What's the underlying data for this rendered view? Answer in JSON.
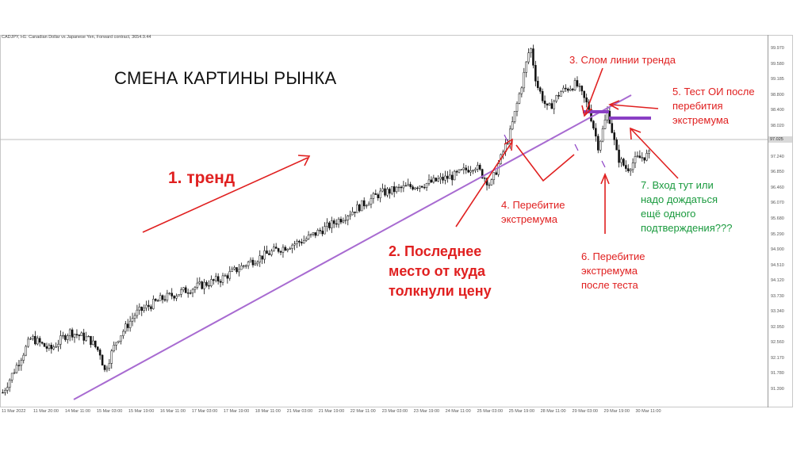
{
  "slide": {
    "title": "СМЕНА КАРТИНЫ РЫНКА"
  },
  "annotations": {
    "trend": "1. тренд",
    "last_push": [
      "2. Последнее",
      "место от куда",
      "толкнули цену"
    ],
    "trendline_break": "3. Слом линии тренда",
    "extreme_break": [
      "4. Перебитие",
      "экстремума"
    ],
    "retest": [
      "5. Тест ОИ после",
      "перебития",
      "экстремума"
    ],
    "extreme_break_after_test": [
      "6. Перебитие",
      "экстремума",
      "после теста"
    ],
    "entry_question": [
      "7. Вход тут или",
      "надо дождаться",
      "ещё одного",
      "подтверждения???"
    ]
  },
  "colors": {
    "annotation_red": "#e02020",
    "annotation_green": "#1a9a3e",
    "trendline": "#a86bd1",
    "level_line": "#8a3fc4",
    "candle": "#111111"
  },
  "chart_data": {
    "type": "candlestick",
    "header": "CADJPY, H1: Canadian Dollar vs Japanese Yen, Forward contract, 3654.9.44",
    "current_price": "97.025",
    "y_ticks": [
      "99.970",
      "99.580",
      "99.185",
      "98.800",
      "98.400",
      "98.020",
      "97.630",
      "97.240",
      "96.850",
      "96.460",
      "96.070",
      "95.680",
      "95.290",
      "94.900",
      "94.510",
      "94.120",
      "93.730",
      "93.340",
      "92.950",
      "92.560",
      "92.170",
      "91.780",
      "91.390"
    ],
    "ylim": [
      91.2,
      100.1
    ],
    "x_ticks": [
      "11 Mar 2022",
      "11 Mar 20:00",
      "14 Mar 11:00",
      "15 Mar 03:00",
      "15 Mar 19:00",
      "16 Mar 11:00",
      "17 Mar 03:00",
      "17 Mar 19:00",
      "18 Mar 11:00",
      "21 Mar 03:00",
      "21 Mar 19:00",
      "22 Mar 11:00",
      "23 Mar 03:00",
      "23 Mar 19:00",
      "24 Mar 11:00",
      "25 Mar 03:00",
      "25 Mar 19:00",
      "28 Mar 11:00",
      "29 Mar 03:00",
      "29 Mar 19:00",
      "30 Mar 11:00"
    ],
    "bars_count": 280,
    "path_keys": [
      [
        0,
        91.45
      ],
      [
        10,
        92.2
      ],
      [
        18,
        92.8
      ],
      [
        30,
        92.5
      ],
      [
        42,
        92.95
      ],
      [
        55,
        92.75
      ],
      [
        62,
        92.4
      ],
      [
        64,
        91.95
      ],
      [
        72,
        92.75
      ],
      [
        84,
        93.4
      ],
      [
        100,
        93.75
      ],
      [
        118,
        94.0
      ],
      [
        138,
        94.25
      ],
      [
        155,
        94.65
      ],
      [
        172,
        94.95
      ],
      [
        190,
        95.2
      ],
      [
        208,
        95.6
      ],
      [
        222,
        95.95
      ],
      [
        238,
        96.35
      ],
      [
        254,
        96.5
      ],
      [
        268,
        96.6
      ],
      [
        286,
        96.8
      ],
      [
        298,
        97.05
      ],
      [
        308,
        96.55
      ],
      [
        320,
        97.8
      ],
      [
        328,
        99.1
      ],
      [
        333,
        100.0
      ],
      [
        337,
        99.05
      ],
      [
        344,
        98.4
      ],
      [
        352,
        98.85
      ],
      [
        362,
        99.05
      ],
      [
        370,
        98.45
      ],
      [
        376,
        97.5
      ],
      [
        382,
        98.4
      ],
      [
        388,
        97.25
      ],
      [
        394,
        96.95
      ],
      [
        400,
        97.2
      ],
      [
        408,
        97.3
      ]
    ]
  }
}
